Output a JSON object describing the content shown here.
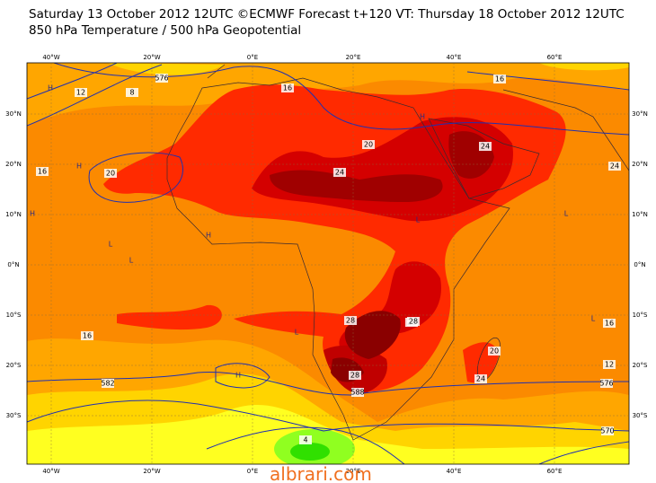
{
  "header": {
    "line1": "Saturday 13 October 2012 12UTC ©ECMWF Forecast t+120 VT: Thursday 18 October 2012 12UTC",
    "line2": "850 hPa Temperature / 500 hPa Geopotential"
  },
  "map": {
    "longitude_labels": [
      "40°W",
      "20°W",
      "0°E",
      "20°E",
      "40°E",
      "60°E"
    ],
    "latitude_labels": [
      "30°N",
      "20°N",
      "10°N",
      "0°N",
      "10°S",
      "20°S",
      "30°S"
    ],
    "contour_labels": [
      "12",
      "8",
      "576",
      "16",
      "16",
      "20",
      "24",
      "20",
      "28",
      "24",
      "28",
      "24",
      "16",
      "28",
      "28",
      "20",
      "24",
      "16",
      "12",
      "582",
      "588",
      "570",
      "4",
      "576",
      "16"
    ],
    "pressure_markers": [
      "H",
      "H",
      "L",
      "H",
      "L",
      "H",
      "L",
      "H",
      "L",
      "L",
      "H",
      "L"
    ]
  },
  "watermark": "albrari.com"
}
